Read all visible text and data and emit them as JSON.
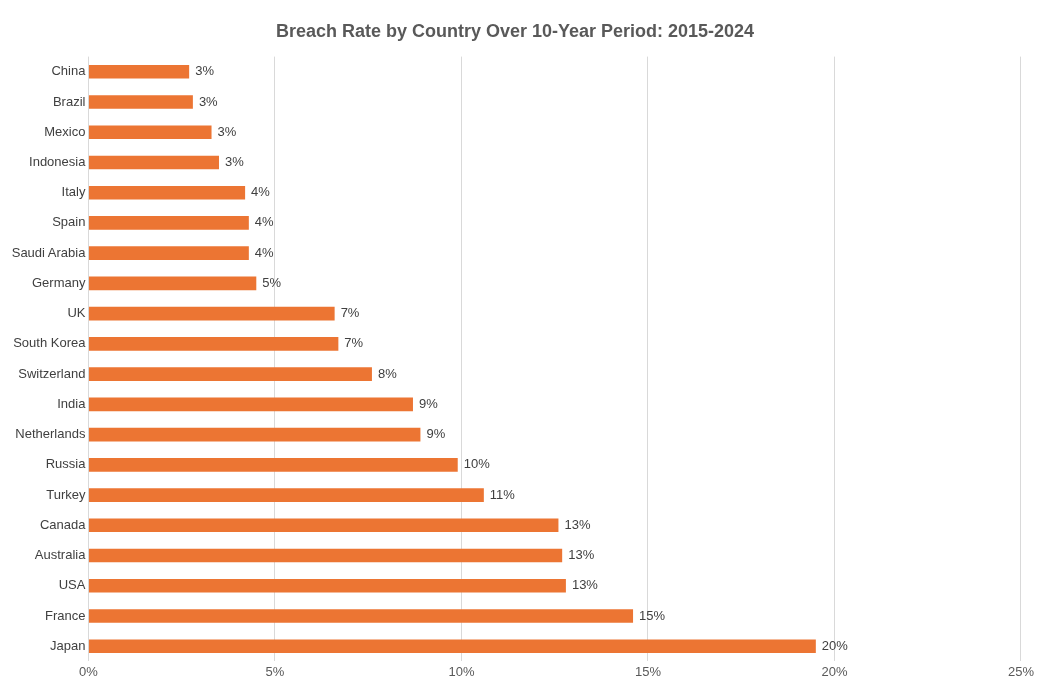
{
  "chart_data": {
    "type": "bar",
    "orientation": "horizontal",
    "title": "Breach Rate by Country Over 10-Year Period: 2015-2024",
    "categories": [
      "China",
      "Brazil",
      "Mexico",
      "Indonesia",
      "Italy",
      "Spain",
      "Saudi Arabia",
      "Germany",
      "UK",
      "South Korea",
      "Switzerland",
      "India",
      "Netherlands",
      "Russia",
      "Turkey",
      "Canada",
      "Australia",
      "USA",
      "France",
      "Japan"
    ],
    "values": [
      2.7,
      2.8,
      3.3,
      3.5,
      4.2,
      4.3,
      4.3,
      4.5,
      6.6,
      6.7,
      7.6,
      8.7,
      8.9,
      9.9,
      10.6,
      12.6,
      12.7,
      12.8,
      14.6,
      19.5
    ],
    "value_labels": [
      "3%",
      "3%",
      "3%",
      "3%",
      "4%",
      "4%",
      "4%",
      "5%",
      "7%",
      "7%",
      "8%",
      "9%",
      "9%",
      "10%",
      "11%",
      "13%",
      "13%",
      "13%",
      "15%",
      "20%"
    ],
    "color": "#ec7533",
    "xlim": [
      0,
      25
    ],
    "xticks": [
      {
        "value": 0,
        "label": "0%"
      },
      {
        "value": 5,
        "label": "5%"
      },
      {
        "value": 10,
        "label": "10%"
      },
      {
        "value": 15,
        "label": "15%"
      },
      {
        "value": 20,
        "label": "20%"
      },
      {
        "value": 25,
        "label": "25%"
      }
    ],
    "grid": "x",
    "legend": false
  }
}
